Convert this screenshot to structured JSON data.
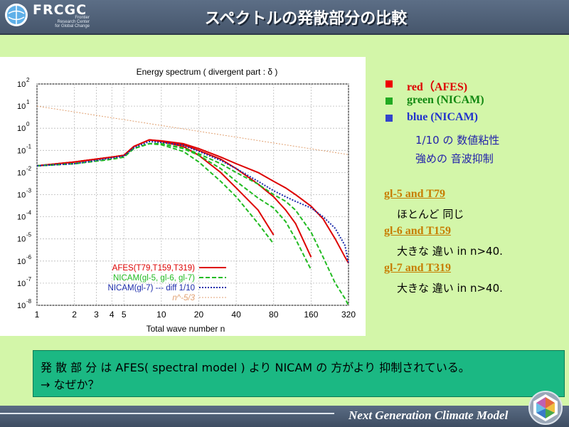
{
  "header": {
    "logo_text": "FRCGC",
    "logo_sub": [
      "Frontier",
      "Research Center",
      "for Global Change"
    ],
    "title": "スペクトルの発散部分の比較"
  },
  "legend": [
    {
      "label": "red（AFES)",
      "color": "#dd0000"
    },
    {
      "label": "green (NICAM)",
      "color": "#118811"
    },
    {
      "label": "blue (NICAM)",
      "color": "#2233cc"
    }
  ],
  "blue_notes": [
    "1/10 の 数値粘性",
    "強めの 音波抑制"
  ],
  "cases": [
    {
      "title": "gl-5  and  T79",
      "desc": "ほとんど 同じ"
    },
    {
      "title": "gl-6 and  T159",
      "desc": "大きな 違い in n>40."
    },
    {
      "title": "gl-7  and T319",
      "desc": "大きな 違い in n>40."
    }
  ],
  "conclusion": {
    "line1": "発 散 部 分 は AFES(   spectral model   ) より NICAM の 方がより 抑制されている。",
    "line2": "→ なぜか？"
  },
  "footer": {
    "text": "Next Generation Climate Model"
  },
  "chart_data": {
    "type": "line",
    "title": "Energy spectrum ( divergent part : δ )",
    "xlabel": "Total wave number n",
    "ylabel": "",
    "xscale": "log",
    "yscale": "log",
    "xlim": [
      1,
      320
    ],
    "ylim": [
      1e-08,
      100
    ],
    "xticks": [
      "1",
      "2",
      "3",
      "4",
      "5",
      "10",
      "20",
      "40",
      "80",
      "160",
      "320"
    ],
    "yticks": [
      "10^-8",
      "10^-7",
      "10^-6",
      "10^-5",
      "10^-4",
      "10^-3",
      "10^-2",
      "10^-1",
      "10^0",
      "10^1",
      "10^2"
    ],
    "grid": true,
    "legend_position": "bottom-left",
    "series": [
      {
        "name": "AFES(T79,T159,T319)",
        "color": "#dd0000",
        "style": "solid",
        "x": [
          1,
          2,
          4,
          5,
          6,
          8,
          10,
          15,
          20,
          30,
          40,
          60,
          80,
          100,
          120,
          160,
          200,
          250,
          300,
          320
        ],
        "curves": [
          [
            0.02,
            0.03,
            0.05,
            0.06,
            0.15,
            0.3,
            0.25,
            0.15,
            0.06,
            0.01,
            0.002,
            0.0002,
            1.5e-05
          ],
          [
            0.02,
            0.03,
            0.05,
            0.06,
            0.15,
            0.3,
            0.26,
            0.18,
            0.1,
            0.04,
            0.015,
            0.003,
            0.0008,
            0.0002,
            5e-05,
            1.5e-06
          ],
          [
            0.02,
            0.03,
            0.05,
            0.06,
            0.15,
            0.3,
            0.27,
            0.2,
            0.12,
            0.05,
            0.025,
            0.01,
            0.004,
            0.002,
            0.001,
            0.0003,
            8e-05,
            1e-05,
            1.5e-06,
            8e-07
          ]
        ]
      },
      {
        "name": "NICAM(gl-5, gl-6, gl-7)",
        "color": "#22bb22",
        "style": "dashed",
        "x": [
          1,
          2,
          4,
          5,
          6,
          8,
          10,
          15,
          20,
          30,
          40,
          60,
          80,
          100,
          120,
          160,
          200,
          250,
          300,
          320
        ],
        "curves": [
          [
            0.02,
            0.025,
            0.04,
            0.05,
            0.12,
            0.2,
            0.18,
            0.09,
            0.03,
            0.004,
            0.0008,
            5e-05,
            6e-06
          ],
          [
            0.02,
            0.025,
            0.04,
            0.05,
            0.12,
            0.2,
            0.2,
            0.12,
            0.06,
            0.015,
            0.004,
            0.0007,
            0.00025,
            6e-05,
            1e-05,
            4e-07
          ],
          [
            0.02,
            0.025,
            0.04,
            0.05,
            0.12,
            0.2,
            0.2,
            0.13,
            0.07,
            0.025,
            0.01,
            0.003,
            0.001,
            0.0005,
            0.0002,
            2e-05,
            1.5e-06,
            1e-07,
            2e-08,
            1e-08
          ]
        ]
      },
      {
        "name": "NICAM(gl-7) --- diff 1/10",
        "color": "#1a2aaa",
        "style": "dotted",
        "x": [
          1,
          2,
          4,
          5,
          6,
          8,
          10,
          15,
          20,
          30,
          40,
          60,
          80,
          100,
          120,
          160,
          200,
          250,
          300,
          320
        ],
        "curves": [
          [
            0.02,
            0.025,
            0.045,
            0.055,
            0.13,
            0.25,
            0.23,
            0.17,
            0.09,
            0.035,
            0.015,
            0.004,
            0.0015,
            0.0008,
            0.0005,
            0.00025,
            0.0001,
            3e-05,
            5e-06,
            8e-07
          ]
        ]
      },
      {
        "name": "n^-5/3",
        "color": "#e0a070",
        "style": "dotted",
        "x": [
          1,
          320
        ],
        "curves": [
          [
            10,
            0.064
          ]
        ]
      }
    ]
  }
}
